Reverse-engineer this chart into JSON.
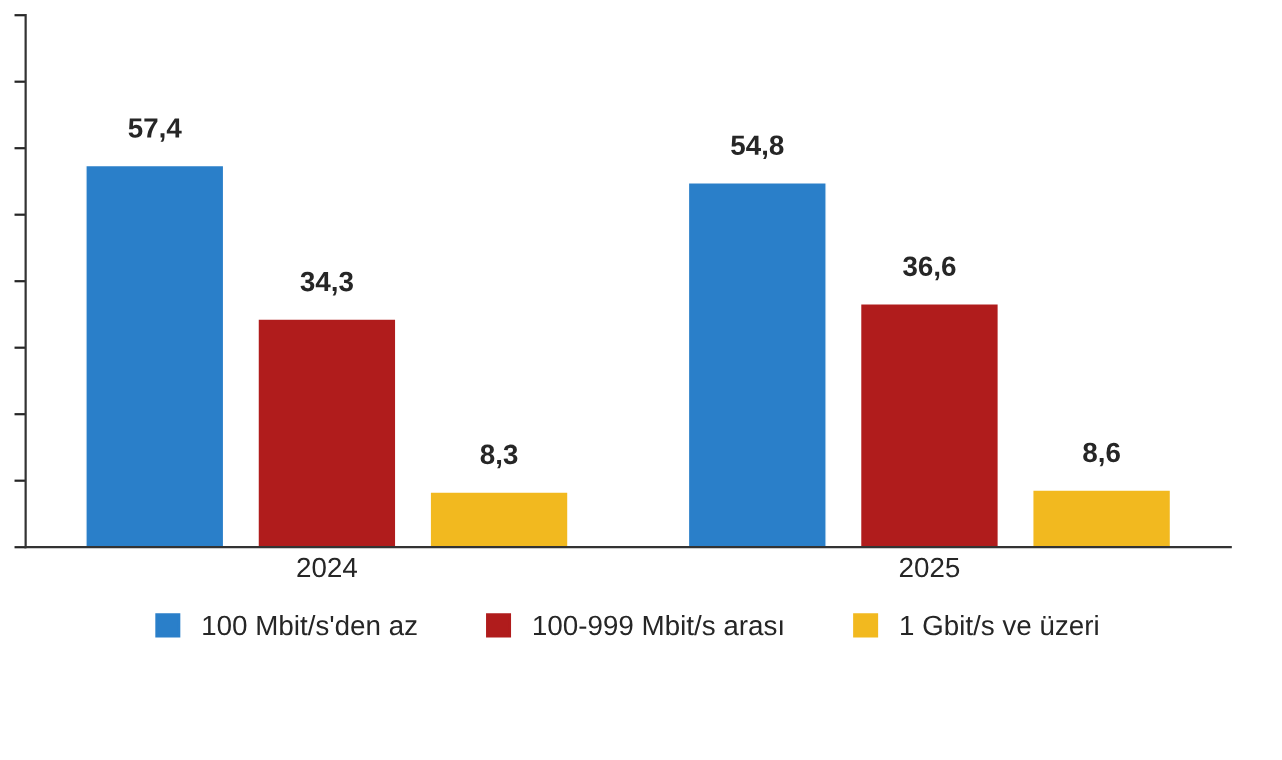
{
  "chart_data": {
    "type": "bar",
    "categories": [
      "2024",
      "2025"
    ],
    "series": [
      {
        "name": "100 Mbit/s'den az",
        "color": "#2a7fc9",
        "values": [
          57.4,
          54.8
        ],
        "value_labels": [
          "57,4",
          "54,8"
        ]
      },
      {
        "name": "100-999 Mbit/s arası",
        "color": "#b01c1c",
        "values": [
          34.3,
          36.6
        ],
        "value_labels": [
          "34,3",
          "36,6"
        ]
      },
      {
        "name": "1 Gbit/s ve üzeri",
        "color": "#f2b91f",
        "values": [
          8.3,
          8.6
        ],
        "value_labels": [
          "8,3",
          "8,6"
        ]
      }
    ],
    "ylim": [
      0,
      80
    ],
    "yticks": [
      {
        "value": 0,
        "label": null
      },
      {
        "value": 10,
        "label": null
      },
      {
        "value": 20,
        "label": null
      },
      {
        "value": 30,
        "label": null
      },
      {
        "value": 40,
        "label": null
      },
      {
        "value": 50,
        "label": null
      },
      {
        "value": 60,
        "label": null
      },
      {
        "value": 70,
        "label": null
      },
      {
        "value": 80,
        "label": null
      }
    ],
    "tick_labels": "x",
    "grid": false,
    "legend": "bottom"
  }
}
